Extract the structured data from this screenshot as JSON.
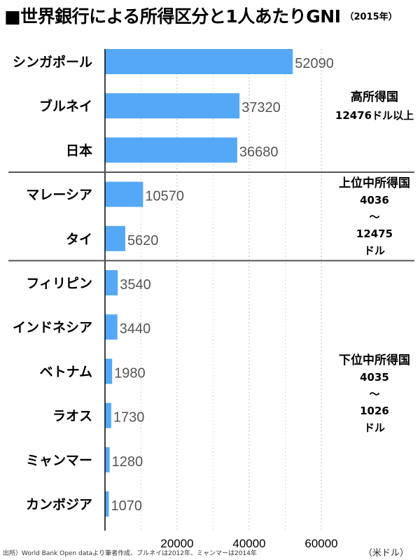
{
  "title": {
    "main": "■世界銀行による所得区分と1人あたりGNI",
    "year": "（2015年）"
  },
  "chart_data": {
    "type": "bar",
    "orientation": "horizontal",
    "categories": [
      "シンガポール",
      "ブルネイ",
      "日本",
      "マレーシア",
      "タイ",
      "フィリピン",
      "インドネシア",
      "ベトナム",
      "ラオス",
      "ミャンマー",
      "カンボジア"
    ],
    "values": [
      52090,
      37320,
      36680,
      10570,
      5620,
      3540,
      3440,
      1980,
      1730,
      1280,
      1070
    ],
    "x_ticks": [
      "20000",
      "40000",
      "60000"
    ],
    "x_tick_values": [
      20000,
      40000,
      60000
    ],
    "xlim": [
      0,
      62000
    ],
    "unit_label": "（米ドル）",
    "grid": "vertical dashed",
    "bar_color": "#55a8f5",
    "groups": [
      {
        "lines": [
          "高所得国",
          "12476ドル以上"
        ],
        "start_index": 0,
        "end_index": 2
      },
      {
        "lines": [
          "上位中所得国",
          "4036",
          "〜",
          "12475",
          "ドル"
        ],
        "start_index": 3,
        "end_index": 4
      },
      {
        "lines": [
          "下位中所得国",
          "4035",
          "〜",
          "1026",
          "ドル"
        ],
        "start_index": 5,
        "end_index": 10
      }
    ]
  },
  "source": "出所）World Bank Open dataより筆者作成、ブルネイは2012年、ミャンマーは2014年"
}
